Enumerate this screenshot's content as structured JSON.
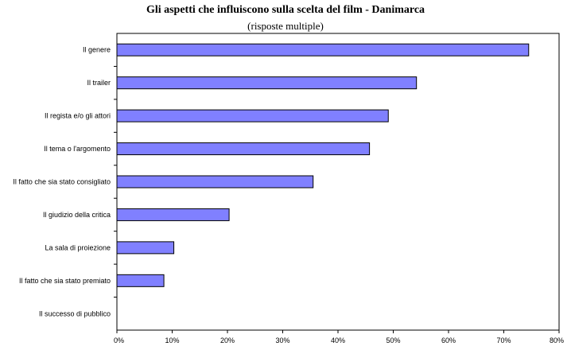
{
  "chart_data": {
    "type": "bar",
    "orientation": "horizontal",
    "title": "Gli aspetti che influiscono sulla scelta del film - Danimarca",
    "subtitle": "(risposte multiple)",
    "categories": [
      "Il genere",
      "Il trailer",
      "Il regista e/o gli attori",
      "Il tema o l'argomento",
      "Il fatto che sia stato consigliato",
      "Il giudizio della critica",
      "La sala di proiezione",
      "Il fatto che sia stato premiato",
      "Il successo di pubblico"
    ],
    "values": [
      74.5,
      54.2,
      49.1,
      45.7,
      35.5,
      20.3,
      10.3,
      8.5,
      0
    ],
    "xlim": [
      0,
      80
    ],
    "x_tick_labels": [
      "0%",
      "10%",
      "20%",
      "30%",
      "40%",
      "50%",
      "60%",
      "70%",
      "80%"
    ],
    "bar_color": "#8080ff",
    "grid": false,
    "legend": "none"
  }
}
